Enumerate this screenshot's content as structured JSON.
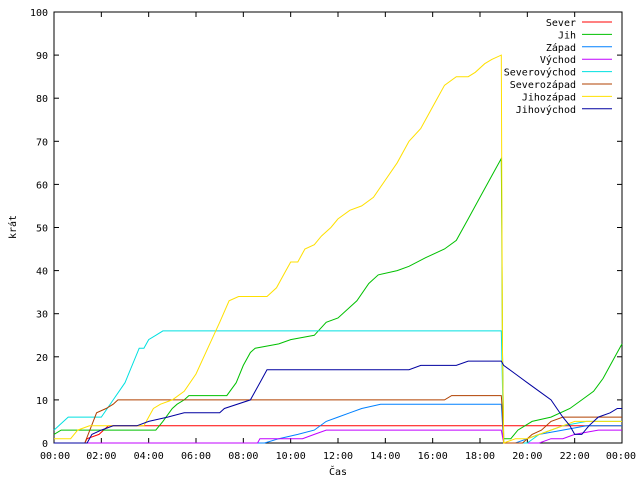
{
  "chart_data": {
    "type": "line",
    "title": "",
    "xlabel": "Čas",
    "ylabel": "krát",
    "xlim": [
      0,
      24
    ],
    "ylim": [
      0,
      100
    ],
    "x_ticks": [
      {
        "value": 0,
        "label": "00:00"
      },
      {
        "value": 2,
        "label": "02:00"
      },
      {
        "value": 4,
        "label": "04:00"
      },
      {
        "value": 6,
        "label": "06:00"
      },
      {
        "value": 8,
        "label": "08:00"
      },
      {
        "value": 10,
        "label": "10:00"
      },
      {
        "value": 12,
        "label": "12:00"
      },
      {
        "value": 14,
        "label": "14:00"
      },
      {
        "value": 16,
        "label": "16:00"
      },
      {
        "value": 18,
        "label": "18:00"
      },
      {
        "value": 20,
        "label": "20:00"
      },
      {
        "value": 22,
        "label": "22:00"
      },
      {
        "value": 24,
        "label": "00:00"
      }
    ],
    "y_ticks": [
      0,
      10,
      20,
      30,
      40,
      50,
      60,
      70,
      80,
      90,
      100
    ],
    "grid": false,
    "legend_position": "top-right",
    "series": [
      {
        "name": "Sever",
        "color": "#ff0000",
        "points": [
          [
            0,
            0
          ],
          [
            1.3,
            0
          ],
          [
            1.4,
            1
          ],
          [
            1.9,
            2
          ],
          [
            2.3,
            4
          ],
          [
            2.4,
            4
          ],
          [
            24,
            4
          ]
        ]
      },
      {
        "name": "Jih",
        "color": "#00c000",
        "points": [
          [
            0,
            2
          ],
          [
            0.3,
            3
          ],
          [
            4.3,
            3
          ],
          [
            4.6,
            5
          ],
          [
            5.0,
            8
          ],
          [
            5.2,
            9
          ],
          [
            5.5,
            10
          ],
          [
            5.7,
            11
          ],
          [
            7.3,
            11
          ],
          [
            7.7,
            14
          ],
          [
            8.0,
            18
          ],
          [
            8.3,
            21
          ],
          [
            8.5,
            22
          ],
          [
            9.5,
            23
          ],
          [
            10.0,
            24
          ],
          [
            11.0,
            25
          ],
          [
            11.5,
            28
          ],
          [
            12.0,
            29
          ],
          [
            12.8,
            33
          ],
          [
            13.3,
            37
          ],
          [
            13.7,
            39
          ],
          [
            14.5,
            40
          ],
          [
            15.0,
            41
          ],
          [
            15.7,
            43
          ],
          [
            16.5,
            45
          ],
          [
            17.0,
            47
          ],
          [
            17.5,
            52
          ],
          [
            18.0,
            57
          ],
          [
            18.5,
            62
          ],
          [
            18.9,
            66
          ],
          [
            18.92,
            50
          ],
          [
            18.95,
            21
          ],
          [
            19.0,
            1
          ],
          [
            19.3,
            1
          ],
          [
            19.6,
            3
          ],
          [
            20.2,
            5
          ],
          [
            21.0,
            6
          ],
          [
            21.8,
            8
          ],
          [
            22.3,
            10
          ],
          [
            22.8,
            12
          ],
          [
            23.2,
            15
          ],
          [
            23.6,
            19
          ],
          [
            24,
            23
          ]
        ]
      },
      {
        "name": "Západ",
        "color": "#0080ff",
        "points": [
          [
            0,
            0
          ],
          [
            8.9,
            0
          ],
          [
            9.5,
            1
          ],
          [
            10.3,
            2
          ],
          [
            11.0,
            3
          ],
          [
            11.5,
            5
          ],
          [
            12.0,
            6
          ],
          [
            12.5,
            7
          ],
          [
            13.0,
            8
          ],
          [
            13.8,
            9
          ],
          [
            18.9,
            9
          ],
          [
            19.0,
            0
          ],
          [
            19.5,
            0
          ],
          [
            20.0,
            1
          ],
          [
            20.5,
            2
          ],
          [
            21.5,
            3
          ],
          [
            22.5,
            4
          ],
          [
            24,
            4
          ]
        ]
      },
      {
        "name": "Východ",
        "color": "#c000ff",
        "points": [
          [
            0,
            0
          ],
          [
            8.6,
            0
          ],
          [
            8.7,
            1
          ],
          [
            10.5,
            1
          ],
          [
            11.0,
            2
          ],
          [
            11.5,
            3
          ],
          [
            18.9,
            3
          ],
          [
            19.0,
            0
          ],
          [
            20.5,
            0
          ],
          [
            21.0,
            1
          ],
          [
            21.5,
            1
          ],
          [
            22.0,
            2
          ],
          [
            23.0,
            3
          ],
          [
            24,
            3
          ]
        ]
      },
      {
        "name": "Severovýchod",
        "color": "#00e0e0",
        "points": [
          [
            0,
            3
          ],
          [
            0.6,
            6
          ],
          [
            2.0,
            6
          ],
          [
            2.5,
            10
          ],
          [
            3.0,
            14
          ],
          [
            3.6,
            22
          ],
          [
            3.8,
            22
          ],
          [
            4.0,
            24
          ],
          [
            4.3,
            25
          ],
          [
            4.6,
            26
          ],
          [
            18.9,
            26
          ],
          [
            19.0,
            0
          ],
          [
            20.0,
            0
          ],
          [
            20.5,
            2
          ],
          [
            21.0,
            3
          ],
          [
            21.5,
            4
          ],
          [
            22.5,
            5
          ],
          [
            24,
            5
          ]
        ]
      },
      {
        "name": "Severozápad",
        "color": "#b04000",
        "points": [
          [
            0,
            0
          ],
          [
            1.3,
            0
          ],
          [
            1.8,
            7
          ],
          [
            2.2,
            8
          ],
          [
            2.5,
            9
          ],
          [
            2.7,
            10
          ],
          [
            16.5,
            10
          ],
          [
            16.8,
            11
          ],
          [
            18.9,
            11
          ],
          [
            18.95,
            7
          ],
          [
            19.0,
            0
          ],
          [
            19.8,
            0
          ],
          [
            20.2,
            2
          ],
          [
            20.6,
            3
          ],
          [
            21.0,
            5
          ],
          [
            21.5,
            6
          ],
          [
            22.0,
            6
          ],
          [
            24,
            6
          ]
        ]
      },
      {
        "name": "Jihozápad",
        "color": "#ffe000",
        "points": [
          [
            0,
            1
          ],
          [
            0.7,
            1
          ],
          [
            1.0,
            3
          ],
          [
            1.5,
            4
          ],
          [
            3.8,
            4
          ],
          [
            4.2,
            8
          ],
          [
            4.5,
            9
          ],
          [
            5.0,
            10
          ],
          [
            5.5,
            12
          ],
          [
            6.0,
            16
          ],
          [
            6.5,
            22
          ],
          [
            7.0,
            28
          ],
          [
            7.4,
            33
          ],
          [
            7.8,
            34
          ],
          [
            9.0,
            34
          ],
          [
            9.4,
            36
          ],
          [
            9.8,
            40
          ],
          [
            10.0,
            42
          ],
          [
            10.3,
            42
          ],
          [
            10.6,
            45
          ],
          [
            11.0,
            46
          ],
          [
            11.3,
            48
          ],
          [
            11.7,
            50
          ],
          [
            12.0,
            52
          ],
          [
            12.5,
            54
          ],
          [
            13.0,
            55
          ],
          [
            13.5,
            57
          ],
          [
            14.0,
            61
          ],
          [
            14.5,
            65
          ],
          [
            15.0,
            70
          ],
          [
            15.5,
            73
          ],
          [
            16.0,
            78
          ],
          [
            16.5,
            83
          ],
          [
            17.0,
            85
          ],
          [
            17.5,
            85
          ],
          [
            17.8,
            86
          ],
          [
            18.2,
            88
          ],
          [
            18.5,
            89
          ],
          [
            18.9,
            90
          ],
          [
            18.92,
            60
          ],
          [
            18.95,
            20
          ],
          [
            19.0,
            0
          ],
          [
            19.5,
            1
          ],
          [
            20.0,
            1
          ],
          [
            20.5,
            2
          ],
          [
            21.0,
            3
          ],
          [
            21.5,
            4
          ],
          [
            22.0,
            5
          ],
          [
            24,
            5
          ]
        ]
      },
      {
        "name": "Jihovýchod",
        "color": "#0000a0",
        "points": [
          [
            0,
            0
          ],
          [
            1.4,
            0
          ],
          [
            1.6,
            2
          ],
          [
            2.0,
            3
          ],
          [
            2.5,
            4
          ],
          [
            3.5,
            4
          ],
          [
            4.0,
            5
          ],
          [
            4.8,
            6
          ],
          [
            5.5,
            7
          ],
          [
            7.0,
            7
          ],
          [
            7.2,
            8
          ],
          [
            8.3,
            10
          ],
          [
            8.5,
            12
          ],
          [
            8.8,
            15
          ],
          [
            9.0,
            17
          ],
          [
            11.0,
            17
          ],
          [
            15.0,
            17
          ],
          [
            15.5,
            18
          ],
          [
            17.0,
            18
          ],
          [
            17.5,
            19
          ],
          [
            18.9,
            19
          ],
          [
            19.0,
            18
          ],
          [
            19.5,
            16
          ],
          [
            20.0,
            14
          ],
          [
            20.5,
            12
          ],
          [
            21.0,
            10
          ],
          [
            21.5,
            6
          ],
          [
            21.8,
            4
          ],
          [
            22.0,
            2
          ],
          [
            22.3,
            2
          ],
          [
            22.6,
            4
          ],
          [
            23.0,
            6
          ],
          [
            23.5,
            7
          ],
          [
            23.8,
            8
          ],
          [
            24,
            8
          ]
        ]
      }
    ]
  }
}
